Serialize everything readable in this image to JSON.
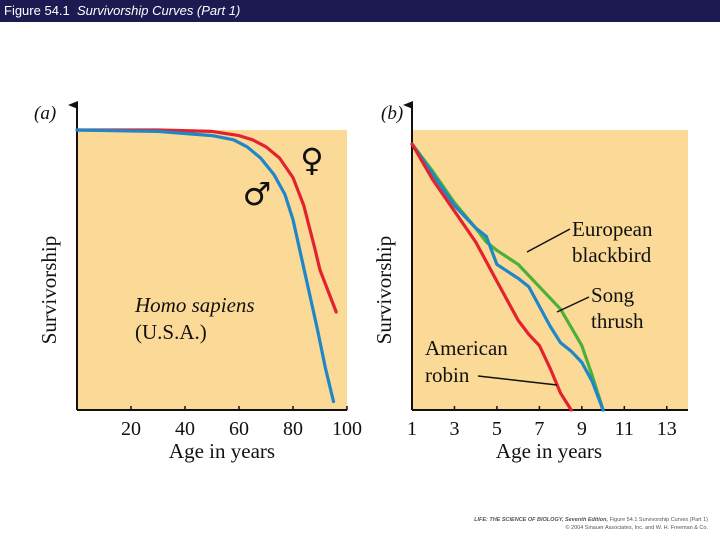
{
  "header": {
    "figure_number": "Figure 54.1",
    "title": "Survivorship Curves (Part 1)"
  },
  "footer": {
    "line1_book": "LIFE: THE SCIENCE OF BIOLOGY, Seventh Edition,",
    "line1_rest": "Figure 54.1 Survivorship Curves (Part 1)",
    "line2": "© 2004 Sinauer Associates, Inc. and W. H. Freeman & Co."
  },
  "colors": {
    "plot_bg": "#fbd997",
    "red": "#e2232f",
    "blue": "#1f86c8",
    "green": "#4caf37",
    "axis": "#111111"
  },
  "chart_data": [
    {
      "type": "line",
      "panel_label": "(a)",
      "xlabel": "Age in years",
      "ylabel": "Survivorship",
      "xlim": [
        0,
        100
      ],
      "ylim": [
        0,
        1
      ],
      "xticks": [
        20,
        40,
        60,
        80,
        100
      ],
      "grid": false,
      "annotation": {
        "line1": "Homo sapiens",
        "line2": "(U.S.A.)"
      },
      "series": [
        {
          "name": "♀",
          "color": "#e2232f",
          "x": [
            0,
            30,
            50,
            60,
            65,
            70,
            75,
            80,
            84,
            88,
            90,
            92,
            94,
            96
          ],
          "y": [
            1.0,
            1.0,
            0.995,
            0.98,
            0.965,
            0.94,
            0.9,
            0.83,
            0.73,
            0.58,
            0.5,
            0.45,
            0.4,
            0.35
          ]
        },
        {
          "name": "♂",
          "color": "#1f86c8",
          "x": [
            0,
            30,
            50,
            58,
            63,
            68,
            73,
            77,
            80,
            83,
            86,
            89,
            92,
            95
          ],
          "y": [
            1.0,
            0.995,
            0.98,
            0.965,
            0.94,
            0.9,
            0.84,
            0.77,
            0.68,
            0.55,
            0.42,
            0.29,
            0.15,
            0.03
          ]
        }
      ]
    },
    {
      "type": "line",
      "panel_label": "(b)",
      "xlabel": "Age in years",
      "ylabel": "Survivorship",
      "xlim": [
        1,
        14
      ],
      "ylim": [
        0,
        1
      ],
      "xticks": [
        1,
        3,
        5,
        7,
        9,
        11,
        13
      ],
      "grid": false,
      "series": [
        {
          "name": "European blackbird",
          "color": "#4caf37",
          "x": [
            1,
            2,
            3,
            4,
            4.5,
            5,
            6,
            7,
            8,
            9,
            9.5,
            10
          ],
          "y": [
            0.95,
            0.85,
            0.74,
            0.65,
            0.6,
            0.57,
            0.52,
            0.44,
            0.36,
            0.23,
            0.12,
            0.0
          ]
        },
        {
          "name": "Song thrush",
          "color": "#1f86c8",
          "x": [
            1,
            2,
            3,
            4,
            4.5,
            5,
            6,
            6.5,
            7,
            7.5,
            8,
            8.5,
            9,
            9.5,
            10
          ],
          "y": [
            0.95,
            0.84,
            0.73,
            0.65,
            0.62,
            0.52,
            0.47,
            0.44,
            0.37,
            0.3,
            0.24,
            0.21,
            0.17,
            0.1,
            0.0
          ]
        },
        {
          "name": "American robin",
          "color": "#e2232f",
          "x": [
            1,
            2,
            3,
            4,
            5,
            6,
            6.5,
            7,
            7.5,
            8,
            8.5
          ],
          "y": [
            0.95,
            0.82,
            0.71,
            0.6,
            0.46,
            0.32,
            0.27,
            0.23,
            0.15,
            0.06,
            0.0
          ]
        }
      ]
    }
  ]
}
